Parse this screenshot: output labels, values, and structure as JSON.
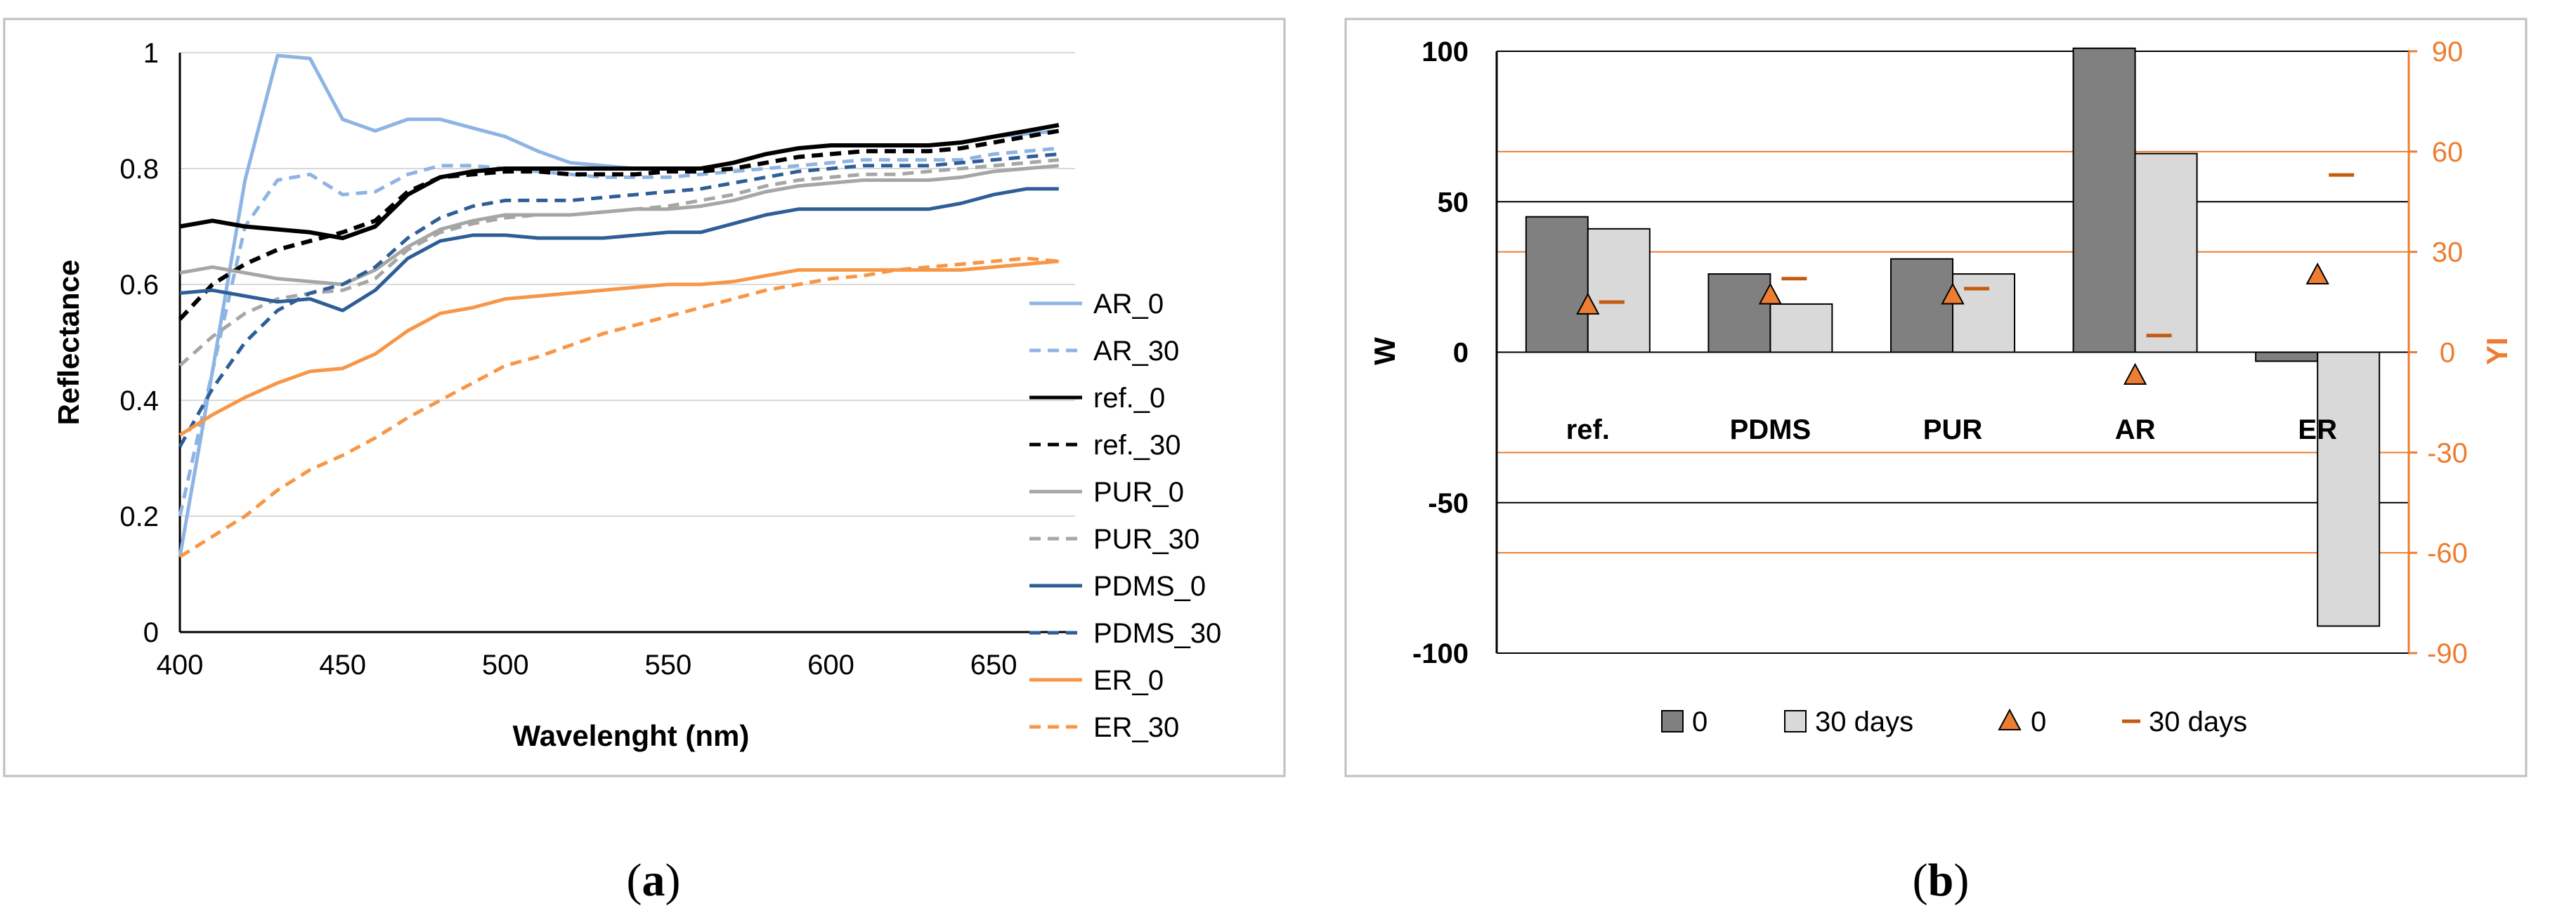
{
  "chart_data": [
    {
      "type": "line",
      "panel_label": "a",
      "title": "",
      "xlabel": "Wavelenght (nm)",
      "ylabel": "Reflectance",
      "xlim": [
        400,
        675
      ],
      "ylim": [
        0,
        1
      ],
      "x_ticks": [
        "400",
        "450",
        "500",
        "550",
        "600",
        "650"
      ],
      "y_ticks": [
        "0",
        "0.2",
        "0.4",
        "0.6",
        "0.8",
        "1"
      ],
      "grid": true,
      "legend_position": "right",
      "x": [
        400,
        410,
        420,
        430,
        440,
        450,
        460,
        470,
        480,
        490,
        500,
        510,
        520,
        530,
        540,
        550,
        560,
        570,
        580,
        590,
        600,
        610,
        620,
        630,
        640,
        650,
        660,
        670
      ],
      "series": [
        {
          "name": "AR_0",
          "color": "#8EB4E3",
          "dash": "solid",
          "values": [
            0.13,
            0.45,
            0.78,
            0.995,
            0.99,
            0.885,
            0.865,
            0.885,
            0.885,
            0.87,
            0.855,
            0.83,
            0.81,
            0.805,
            0.8,
            0.8,
            0.8,
            0.81,
            0.825,
            0.835,
            0.84,
            0.84,
            0.84,
            0.84,
            0.845,
            0.855,
            0.86,
            0.865
          ]
        },
        {
          "name": "AR_30",
          "color": "#8EB4E3",
          "dash": "dash",
          "values": [
            0.2,
            0.45,
            0.7,
            0.78,
            0.79,
            0.755,
            0.76,
            0.79,
            0.805,
            0.805,
            0.8,
            0.795,
            0.79,
            0.785,
            0.785,
            0.785,
            0.79,
            0.795,
            0.8,
            0.805,
            0.81,
            0.815,
            0.815,
            0.815,
            0.815,
            0.825,
            0.83,
            0.835
          ]
        },
        {
          "name": "ref._0",
          "color": "#000000",
          "dash": "solid",
          "values": [
            0.7,
            0.71,
            0.7,
            0.695,
            0.69,
            0.68,
            0.7,
            0.755,
            0.785,
            0.795,
            0.8,
            0.8,
            0.8,
            0.8,
            0.8,
            0.8,
            0.8,
            0.81,
            0.825,
            0.835,
            0.84,
            0.84,
            0.84,
            0.84,
            0.845,
            0.855,
            0.865,
            0.875
          ]
        },
        {
          "name": "ref._30",
          "color": "#000000",
          "dash": "dash",
          "values": [
            0.54,
            0.6,
            0.635,
            0.66,
            0.675,
            0.69,
            0.71,
            0.76,
            0.785,
            0.79,
            0.795,
            0.795,
            0.79,
            0.79,
            0.79,
            0.795,
            0.795,
            0.8,
            0.81,
            0.82,
            0.825,
            0.83,
            0.83,
            0.83,
            0.835,
            0.845,
            0.855,
            0.865
          ]
        },
        {
          "name": "PUR_0",
          "color": "#A6A6A6",
          "dash": "solid",
          "values": [
            0.62,
            0.63,
            0.62,
            0.61,
            0.605,
            0.6,
            0.625,
            0.665,
            0.695,
            0.71,
            0.72,
            0.72,
            0.72,
            0.725,
            0.73,
            0.73,
            0.735,
            0.745,
            0.76,
            0.77,
            0.775,
            0.78,
            0.78,
            0.78,
            0.785,
            0.795,
            0.8,
            0.805
          ]
        },
        {
          "name": "PUR_30",
          "color": "#A6A6A6",
          "dash": "dash",
          "values": [
            0.46,
            0.51,
            0.55,
            0.575,
            0.585,
            0.59,
            0.61,
            0.66,
            0.69,
            0.705,
            0.715,
            0.72,
            0.72,
            0.725,
            0.73,
            0.735,
            0.745,
            0.755,
            0.77,
            0.78,
            0.785,
            0.79,
            0.79,
            0.795,
            0.8,
            0.805,
            0.81,
            0.815
          ]
        },
        {
          "name": "PDMS_0",
          "color": "#2E5E97",
          "dash": "solid",
          "values": [
            0.585,
            0.59,
            0.58,
            0.57,
            0.575,
            0.555,
            0.59,
            0.645,
            0.675,
            0.685,
            0.685,
            0.68,
            0.68,
            0.68,
            0.685,
            0.69,
            0.69,
            0.705,
            0.72,
            0.73,
            0.73,
            0.73,
            0.73,
            0.73,
            0.74,
            0.755,
            0.765,
            0.765
          ]
        },
        {
          "name": "PDMS_30",
          "color": "#2E5E97",
          "dash": "dash",
          "values": [
            0.32,
            0.42,
            0.5,
            0.555,
            0.585,
            0.6,
            0.63,
            0.68,
            0.715,
            0.735,
            0.745,
            0.745,
            0.745,
            0.75,
            0.755,
            0.76,
            0.765,
            0.775,
            0.785,
            0.795,
            0.8,
            0.805,
            0.805,
            0.805,
            0.81,
            0.815,
            0.82,
            0.825
          ]
        },
        {
          "name": "ER_0",
          "color": "#F79646",
          "dash": "solid",
          "values": [
            0.34,
            0.375,
            0.405,
            0.43,
            0.45,
            0.455,
            0.48,
            0.52,
            0.55,
            0.56,
            0.575,
            0.58,
            0.585,
            0.59,
            0.595,
            0.6,
            0.6,
            0.605,
            0.615,
            0.625,
            0.625,
            0.625,
            0.625,
            0.625,
            0.625,
            0.63,
            0.635,
            0.64
          ]
        },
        {
          "name": "ER_30",
          "color": "#F79646",
          "dash": "dash",
          "values": [
            0.13,
            0.165,
            0.2,
            0.245,
            0.28,
            0.305,
            0.335,
            0.37,
            0.4,
            0.43,
            0.46,
            0.475,
            0.495,
            0.515,
            0.53,
            0.545,
            0.56,
            0.575,
            0.59,
            0.6,
            0.61,
            0.615,
            0.625,
            0.63,
            0.635,
            0.64,
            0.645,
            0.64
          ]
        }
      ]
    },
    {
      "type": "bar",
      "panel_label": "b",
      "title": "",
      "categories": [
        "ref.",
        "PDMS",
        "PUR",
        "AR",
        "ER"
      ],
      "ylabel": "W",
      "ylim": [
        -100,
        100
      ],
      "y_ticks": [
        "100",
        "50",
        "0",
        "-50",
        "-100"
      ],
      "y2label": "YI",
      "y2lim": [
        -90,
        90
      ],
      "y2_ticks": [
        "90",
        "60",
        "30",
        "0",
        "-30",
        "-60",
        "-90"
      ],
      "legend_position": "bottom",
      "series": [
        {
          "name": "0",
          "axis": "W",
          "kind": "bar",
          "color": "#808080",
          "values": [
            45,
            26,
            31,
            101,
            -3
          ]
        },
        {
          "name": "30 days",
          "axis": "W",
          "kind": "bar",
          "color": "#D9D9D9",
          "values": [
            41,
            16,
            26,
            66,
            -91
          ]
        },
        {
          "name": "0",
          "axis": "YI",
          "kind": "triangle",
          "color": "#ED7D31",
          "values": [
            14,
            17,
            17,
            -7,
            23
          ]
        },
        {
          "name": "30 days",
          "axis": "YI",
          "kind": "dash",
          "color": "#C55A11",
          "values": [
            15,
            22,
            19,
            5,
            53
          ]
        }
      ]
    }
  ],
  "captions": {
    "a": "a",
    "b": "b"
  }
}
